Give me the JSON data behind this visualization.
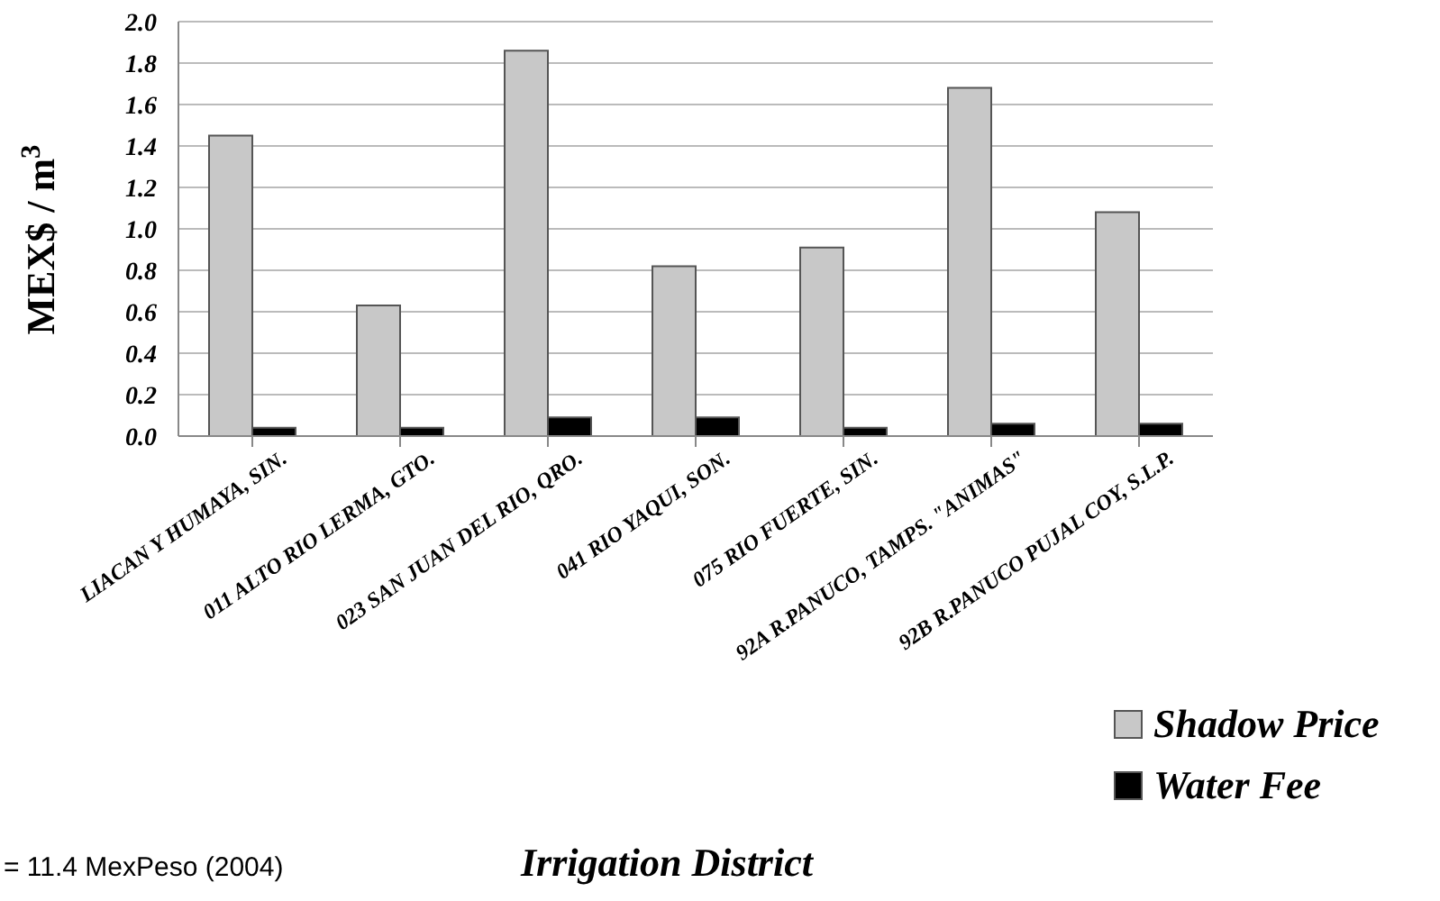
{
  "chart_data": {
    "type": "bar",
    "xlabel": "Irrigation District",
    "ylabel": "MEX$ / m$^{3}$",
    "categories": [
      "LIACAN Y HUMAYA, SIN.",
      "011 ALTO RIO LERMA, GTO.",
      "023 SAN JUAN DEL RIO, QRO.",
      "041 RIO YAQUI, SON.",
      "075 RIO FUERTE, SIN.",
      "92A R.PANUCO, TAMPS. \"ANIMAS\"",
      "92B R.PANUCO PUJAL COY, S.L.P."
    ],
    "series": [
      {
        "name": "Shadow Price",
        "color": "#c8c8c8",
        "values": [
          1.45,
          0.63,
          1.86,
          0.82,
          0.91,
          1.68,
          1.08
        ]
      },
      {
        "name": "Water Fee",
        "color": "#000000",
        "values": [
          0.04,
          0.04,
          0.09,
          0.09,
          0.04,
          0.06,
          0.06
        ]
      }
    ],
    "ylim": [
      0,
      2.0
    ],
    "yticks": [
      {
        "value": 0,
        "label": "0.0"
      },
      {
        "value": 0.2,
        "label": "0.2"
      },
      {
        "value": 0.4,
        "label": "0.4"
      },
      {
        "value": 0.6,
        "label": "0.6"
      },
      {
        "value": 0.8,
        "label": "0.8"
      },
      {
        "value": 1.0,
        "label": "1.0"
      },
      {
        "value": 1.2,
        "label": "1.2"
      },
      {
        "value": 1.4,
        "label": "1.4"
      },
      {
        "value": 1.6,
        "label": "1.6"
      },
      {
        "value": 1.8,
        "label": "1.8"
      },
      {
        "value": 2.0,
        "label": "2.0"
      }
    ],
    "grid": "y",
    "legend": "bottom right",
    "annotations": [
      "= 11.4 MexPeso (2004)"
    ]
  }
}
